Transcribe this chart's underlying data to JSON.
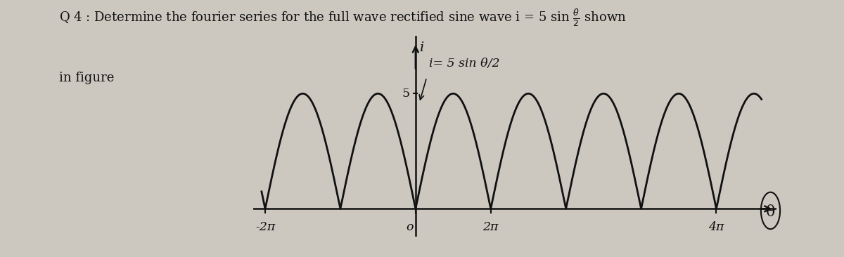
{
  "amplitude": 5,
  "background_color": "#ccc8c0",
  "curve_color": "#111111",
  "axis_color": "#111111",
  "text_color": "#111111",
  "title_fontsize": 13.0,
  "label_fontsize": 11.5,
  "tick_fontsize": 12.5,
  "curve_label_fontsize": 12.5,
  "y_tick_5": "5",
  "tick_label_neg2pi": "-2π",
  "tick_label_0": "o",
  "tick_label_2pi": "2π",
  "tick_label_4pi": "4π",
  "curve_label": "i= 5 sin θ/2",
  "x_axis_label": "θ",
  "y_axis_label": "i",
  "title_in_figure": "in figure"
}
